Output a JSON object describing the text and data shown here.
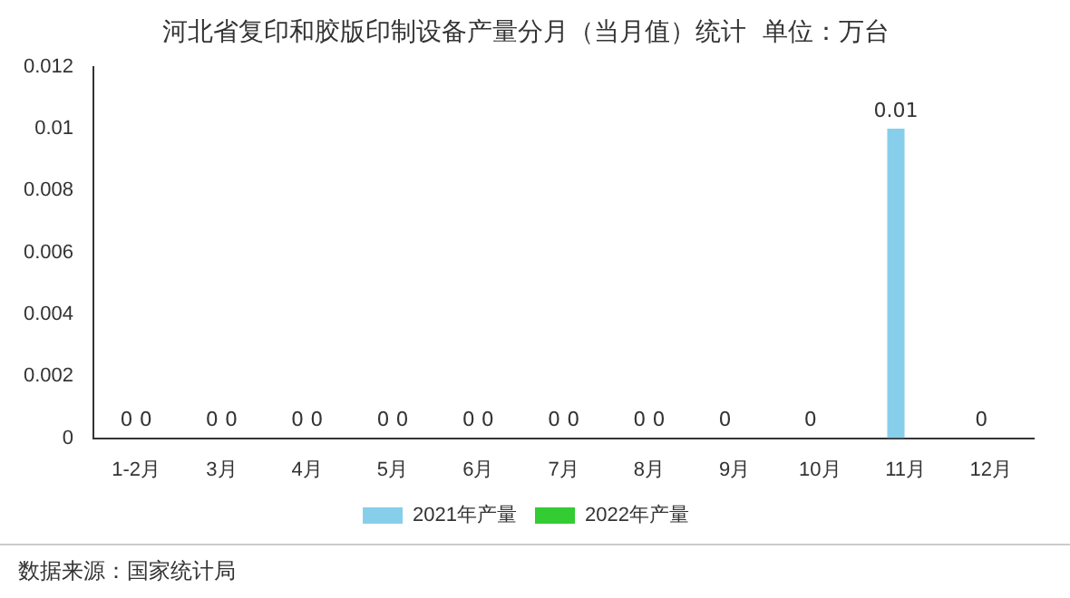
{
  "chart_data": {
    "type": "bar",
    "title": "河北省复印和胶版印制设备产量分月（当月值）统计  单位：万台",
    "categories": [
      "1-2月",
      "3月",
      "4月",
      "5月",
      "6月",
      "7月",
      "8月",
      "9月",
      "10月",
      "11月",
      "12月"
    ],
    "series": [
      {
        "name": "2021年产量",
        "color": "#87ceeb",
        "values": [
          0,
          0,
          0,
          0,
          0,
          0,
          0,
          0,
          0,
          0.01,
          0
        ]
      },
      {
        "name": "2022年产量",
        "color": "#33cc33",
        "values": [
          0,
          0,
          0,
          0,
          0,
          0,
          0,
          null,
          null,
          null,
          null
        ]
      }
    ],
    "ylim": [
      0,
      0.012
    ],
    "yticks": [
      0,
      0.002,
      0.004,
      0.006,
      0.008,
      0.01,
      0.012
    ],
    "grid": false,
    "legend": "bottom",
    "data_labels": true,
    "annotations": [
      "数据来源：国家统计局"
    ]
  }
}
